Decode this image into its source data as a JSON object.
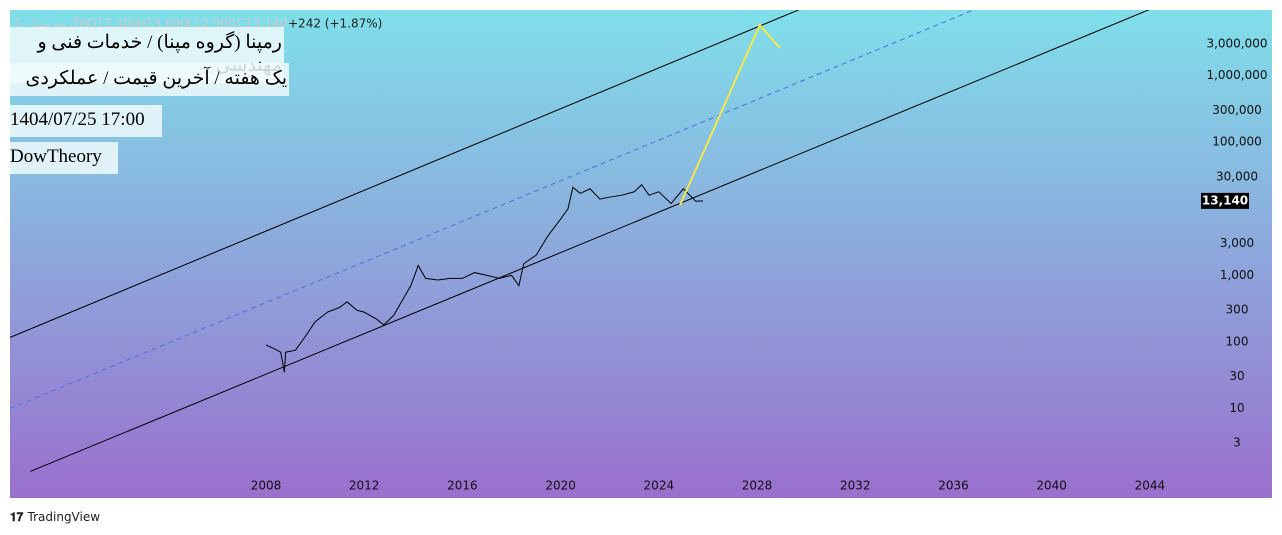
{
  "header": {
    "symbol": "گروه مپنا · 1W",
    "open": "O13,300",
    "high": "H13,690",
    "low": "L12,900",
    "close": "C13,140",
    "change": "+242 (+1.87%)"
  },
  "notes": [
    "رمپنا (گروه مپنا) / خدمات فنی و مهندسی",
    "یک هفته / آخرین قیمت / عملکردی",
    "1404/07/25 17:00",
    "DowTheory"
  ],
  "footer": "TradingView",
  "chart_data": {
    "type": "line",
    "log_scale": true,
    "xlim": [
      1997.575,
      2046.04
    ],
    "xticks": [
      2008,
      2012,
      2016,
      2020,
      2024,
      2028,
      2032,
      2036,
      2040,
      2044
    ],
    "ylim": [
      1,
      9700000
    ],
    "yticks": [
      3,
      10,
      30,
      100,
      300,
      {
        "value": 1000,
        "label": "1,000"
      },
      {
        "value": 3000,
        "label": "3,000"
      },
      {
        "value": 30000,
        "label": "30,000"
      },
      {
        "value": 100000,
        "label": "100,000"
      },
      {
        "value": 300000,
        "label": "300,000"
      },
      {
        "value": 1000000,
        "label": "1,000,000"
      },
      {
        "value": 3000000,
        "label": "3,000,000"
      }
    ],
    "last_price": {
      "value": 13140,
      "label": "13,140"
    },
    "series": [
      {
        "color": "#000000",
        "x": [
          2008.0,
          2008.3,
          2008.6,
          2008.75,
          2008.8,
          2009.2,
          2009.6,
          2010.0,
          2010.5,
          2011.0,
          2011.3,
          2011.7,
          2012.0,
          2012.5,
          2012.8,
          2013.2,
          2013.6,
          2013.9,
          2014.2,
          2014.5,
          2015.0,
          2015.5,
          2016.0,
          2016.5,
          2017.0,
          2017.5,
          2018.0,
          2018.3,
          2018.5,
          2019.0,
          2019.5,
          2020.0,
          2020.3,
          2020.5,
          2020.8,
          2021.2,
          2021.6,
          2022.0,
          2022.5,
          2023.0,
          2023.3,
          2023.6,
          2024.0,
          2024.5,
          2025.0,
          2025.5,
          2025.8
        ],
        "values": [
          90,
          80,
          70,
          35,
          70,
          75,
          120,
          200,
          280,
          330,
          400,
          300,
          280,
          220,
          180,
          250,
          450,
          700,
          1400,
          900,
          850,
          900,
          900,
          1100,
          1000,
          900,
          1000,
          700,
          1500,
          2000,
          4000,
          7000,
          10000,
          21000,
          17000,
          20000,
          14000,
          15000,
          16000,
          18000,
          23000,
          16000,
          18000,
          12000,
          20000,
          13000,
          13140
        ]
      },
      {
        "color": "#000000",
        "x": [
          1998.4,
          2044.0
        ],
        "values": [
          1.13,
          9900000
        ]
      },
      {
        "color": "#000000",
        "x": [
          1997.58,
          2029.74
        ],
        "values": [
          117,
          9900000
        ]
      },
      {
        "color": "#4a6fe3",
        "dashed": true,
        "x": [
          1997.58,
          2036.87
        ],
        "values": [
          10,
          9900000
        ]
      },
      {
        "color": "#f2e84a",
        "x": [
          2024.86,
          2028.11,
          2028.93
        ],
        "values": [
          11300,
          5750000,
          2600000
        ]
      }
    ]
  }
}
